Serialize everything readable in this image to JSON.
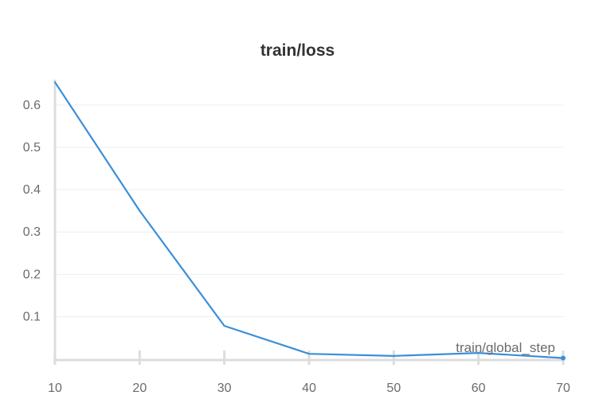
{
  "chart_data": {
    "type": "line",
    "title": "train/loss",
    "xlabel": "train/global_step",
    "ylabel": "",
    "x": [
      10,
      20,
      30,
      40,
      50,
      60,
      70
    ],
    "series": [
      {
        "values": [
          0.654,
          0.35,
          0.078,
          0.012,
          0.007,
          0.014,
          0.002
        ]
      }
    ],
    "x_ticks": [
      10,
      20,
      30,
      40,
      50,
      60,
      70
    ],
    "y_ticks": [
      0.1,
      0.2,
      0.3,
      0.4,
      0.5,
      0.6
    ],
    "xlim": [
      10,
      70
    ],
    "ylim": [
      -0.0027,
      0.66
    ],
    "grid": true,
    "line_color": "#3b8fd8",
    "grid_color": "#eeeeee",
    "axis_color": "#dddddd"
  }
}
